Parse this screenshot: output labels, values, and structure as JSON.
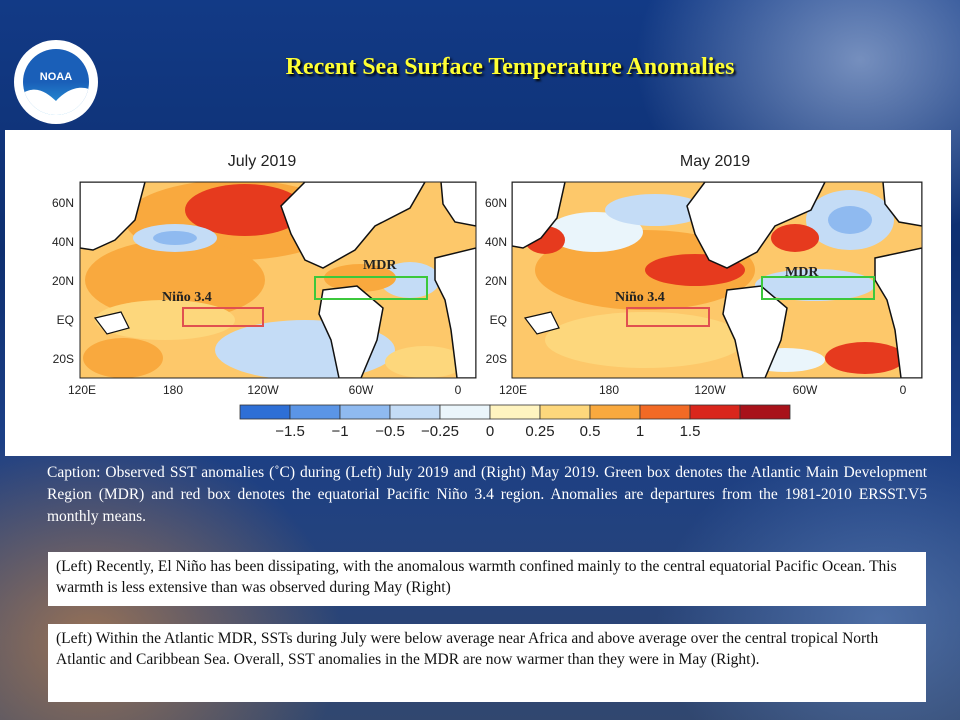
{
  "slide": {
    "title": "Recent Sea Surface Temperature Anomalies",
    "logo_text": "NOAA",
    "caption": "Caption: Observed SST anomalies (˚C) during (Left) July 2019 and (Right) May 2019. Green box denotes the Atlantic Main Development Region (MDR) and red box denotes the equatorial Pacific Niño 3.4 region. Anomalies are departures from the 1981-2010 ERSST.V5 monthly means.",
    "note1": "(Left) Recently, El Niño has been dissipating, with the anomalous warmth confined mainly to the central equatorial Pacific Ocean. This warmth is less extensive than was observed during May (Right)",
    "note2": "(Left) Within the Atlantic MDR, SSTs during July were below average near Africa and above average over the central tropical North Atlantic and Caribbean Sea. Overall, SST anomalies in the MDR are now warmer than they were in May (Right)."
  },
  "maps": [
    {
      "title": "July 2019",
      "mdr_label": "MDR",
      "nino_label": "Niño 3.4"
    },
    {
      "title": "May 2019",
      "mdr_label": "MDR",
      "nino_label": "Niño 3.4"
    }
  ],
  "axes": {
    "lat_ticks": [
      "60N",
      "40N",
      "20N",
      "EQ",
      "20S"
    ],
    "lon_ticks": [
      "120E",
      "180",
      "120W",
      "60W",
      "0"
    ]
  },
  "colorbar": {
    "labels": [
      "−1.5",
      "−1",
      "−0.5",
      "−0.25",
      "0",
      "0.25",
      "0.5",
      "1",
      "1.5"
    ],
    "colors": [
      "#2e6fd6",
      "#5b95e6",
      "#8fbaf0",
      "#c4dcf6",
      "#eaf5fb",
      "#fff4c0",
      "#fdd77c",
      "#f9a93e",
      "#f26a25",
      "#d9261c",
      "#a8121a"
    ]
  },
  "colors": {
    "title": "#ffff33",
    "mdr_box": "#3cc83c",
    "nino_box": "#e05050"
  }
}
